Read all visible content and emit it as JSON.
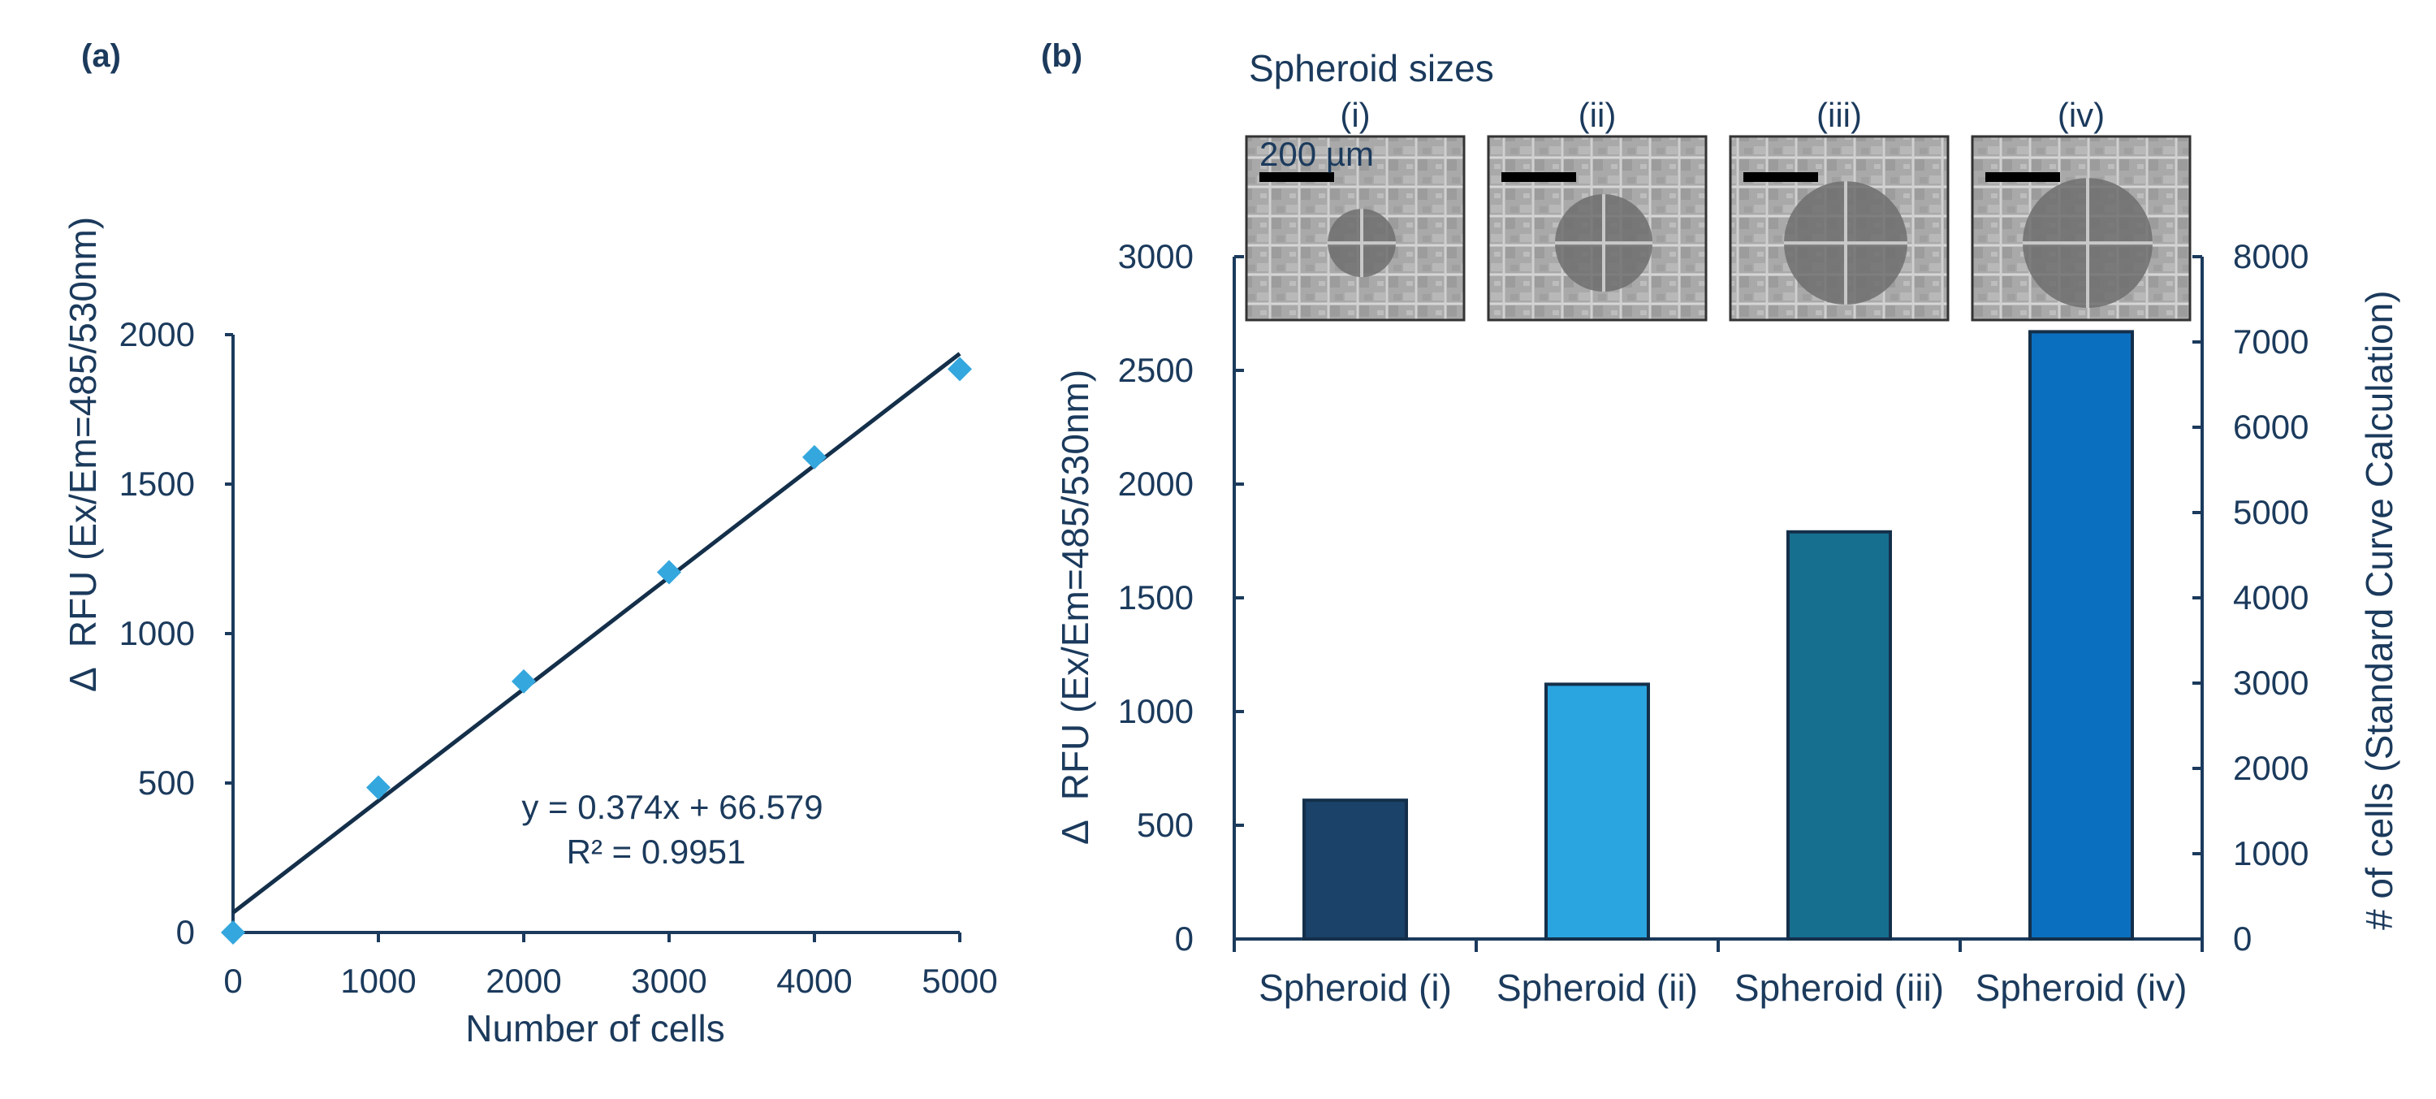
{
  "panels": {
    "a": "(a)",
    "b": "(b)"
  },
  "colors": {
    "axis": "#1b3a5c",
    "marker": "#34a7de",
    "fit_line": "#142f4a",
    "bar_outline": "#142f4a"
  },
  "chart_data": [
    {
      "type": "scatter",
      "panel": "(a)",
      "xlabel": "Number of cells",
      "ylabel": "RFU (Ex/Em=485/530nm)",
      "ylabel_prefix": "Δ",
      "xlim": [
        0,
        5000
      ],
      "ylim": [
        0,
        2000
      ],
      "xticks": [
        0,
        1000,
        2000,
        3000,
        4000,
        5000
      ],
      "yticks": [
        0,
        500,
        1000,
        1500,
        2000
      ],
      "x": [
        0,
        1000,
        2000,
        3000,
        4000,
        5000
      ],
      "y": [
        0,
        485,
        840,
        1205,
        1590,
        1885
      ],
      "fit": {
        "slope": 0.374,
        "intercept": 66.579
      },
      "equation": "y = 0.374x + 66.579",
      "r2_label": "R² = 0.9951",
      "grid": false
    },
    {
      "type": "bar",
      "panel": "(b)",
      "subtitle": "Spheroid sizes",
      "categories": [
        "Spheroid (i)",
        "Spheroid (ii)",
        "Spheroid (iii)",
        "Spheroid (iv)"
      ],
      "values": [
        610,
        1120,
        1790,
        2670
      ],
      "bar_colors": [
        "#1b4268",
        "#2aa5e0",
        "#176f8f",
        "#0b6fbf"
      ],
      "ylabel": "RFU (Ex/Em=485/530nm)",
      "ylabel_prefix": "Δ",
      "ylim": [
        0,
        3000
      ],
      "yticks": [
        0,
        500,
        1000,
        1500,
        2000,
        2500,
        3000
      ],
      "y2label": "# of cells (Standard Curve Calculation)",
      "y2lim": [
        0,
        8000
      ],
      "y2ticks": [
        0,
        1000,
        2000,
        3000,
        4000,
        5000,
        6000,
        7000,
        8000
      ],
      "image_labels": [
        "(i)",
        "(ii)",
        "(iii)",
        "(iv)"
      ],
      "scale_bar_label": "200 µm",
      "grid": false
    }
  ]
}
